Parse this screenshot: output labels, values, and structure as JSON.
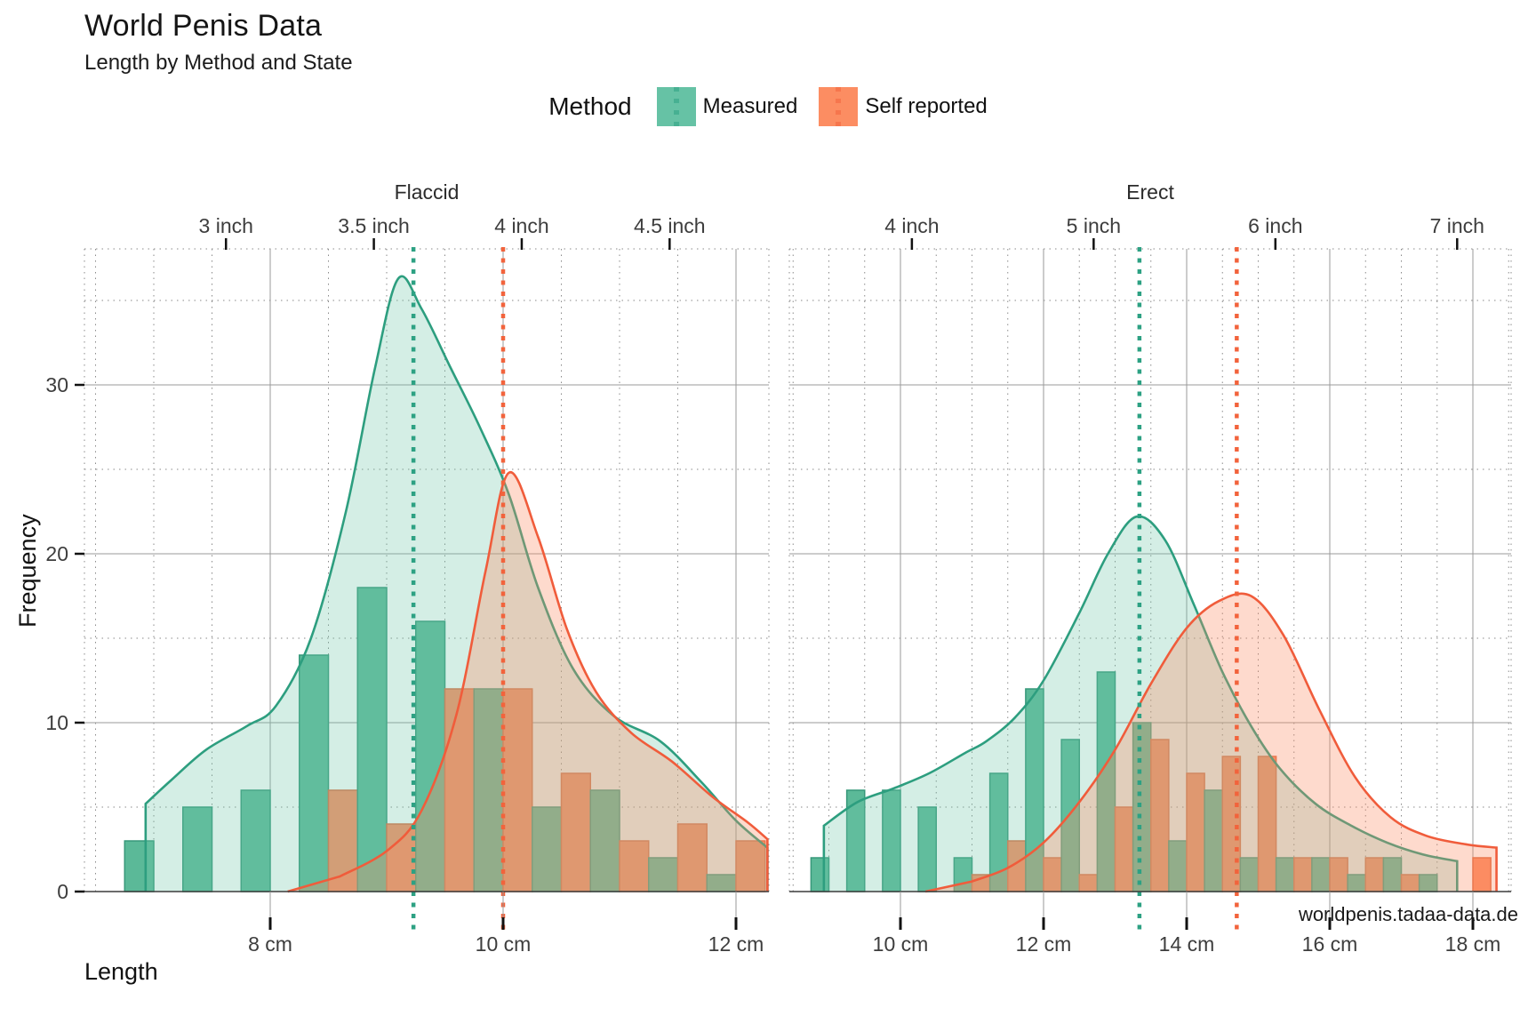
{
  "title": "World Penis Data",
  "subtitle": "Length by Method and State",
  "legend": {
    "title": "Method",
    "items": [
      {
        "label": "Measured",
        "color": "#66C2A5"
      },
      {
        "label": "Self reported",
        "color": "#FC8D62"
      }
    ]
  },
  "y_axis": {
    "label": "Frequency",
    "ticks": [
      0,
      10,
      20,
      30
    ],
    "minor_ticks": [
      5,
      15,
      25,
      35
    ],
    "max": 38
  },
  "x_axis": {
    "label": "Length"
  },
  "footer": "worldpenis.tadaa-data.de",
  "colors": {
    "measured_bar": "#5BB998",
    "measured_bar_stroke": "#37987A",
    "measured_line": "#2D9E7F",
    "measured_area": "rgba(111,199,168,0.30)",
    "measured_vline": "#2DA183",
    "self_bar": "#FC8D62",
    "self_bar_stroke": "#DF6E44",
    "self_line": "#F05C3B",
    "self_area": "rgba(252,141,98,0.32)",
    "self_vline": "#F2633C",
    "grid_major": "#9a9a9a",
    "grid_minor": "#8a8a8a",
    "axis_line": "#3c3c3c",
    "tick": "#111111"
  },
  "chart_data": {
    "type": "bar",
    "subtype": "dodged histogram with density curves and mean vlines",
    "series": [
      "Measured",
      "Self reported"
    ],
    "binwidth_cm": 0.5,
    "facets": [
      {
        "label": "Flaccid",
        "top_ticks": [
          {
            "cm": 7.62,
            "label": "3 inch"
          },
          {
            "cm": 8.89,
            "label": "3.5 inch"
          },
          {
            "cm": 10.16,
            "label": "4 inch"
          },
          {
            "cm": 11.43,
            "label": "4.5 inch"
          }
        ],
        "bottom_ticks": [
          {
            "cm": 8,
            "label": "8 cm"
          },
          {
            "cm": 10,
            "label": "10 cm"
          },
          {
            "cm": 12,
            "label": "12 cm"
          }
        ],
        "bins": [
          [
            7.0,
            3,
            0
          ],
          [
            7.5,
            5,
            0
          ],
          [
            8.0,
            6,
            0
          ],
          [
            8.5,
            14,
            6
          ],
          [
            9.0,
            18,
            4
          ],
          [
            9.5,
            16,
            12
          ],
          [
            10.0,
            12,
            12
          ],
          [
            10.5,
            5,
            7
          ],
          [
            11.0,
            6,
            3
          ],
          [
            11.5,
            2,
            4
          ],
          [
            12.0,
            1,
            3
          ]
        ],
        "means_cm": {
          "measured": 9.23,
          "self_reported": 10.0
        },
        "density": {
          "measured": [
            [
              6.93,
              0
            ],
            [
              6.93,
              5.2
            ],
            [
              7.15,
              6.6
            ],
            [
              7.45,
              8.4
            ],
            [
              7.8,
              9.8
            ],
            [
              8.05,
              11.0
            ],
            [
              8.35,
              15.0
            ],
            [
              8.65,
              22.5
            ],
            [
              8.9,
              31.0
            ],
            [
              9.1,
              36.3
            ],
            [
              9.3,
              34.5
            ],
            [
              9.55,
              31.0
            ],
            [
              9.8,
              27.5
            ],
            [
              10.05,
              23.5
            ],
            [
              10.3,
              18.0
            ],
            [
              10.6,
              13.2
            ],
            [
              10.95,
              10.4
            ],
            [
              11.35,
              8.9
            ],
            [
              11.7,
              6.5
            ],
            [
              12.0,
              4.2
            ],
            [
              12.27,
              2.6
            ],
            [
              12.27,
              0
            ]
          ],
          "self_reported": [
            [
              8.15,
              0
            ],
            [
              8.6,
              0.9
            ],
            [
              9.0,
              2.4
            ],
            [
              9.3,
              4.8
            ],
            [
              9.6,
              10.5
            ],
            [
              9.85,
              19.0
            ],
            [
              10.05,
              24.8
            ],
            [
              10.3,
              21.0
            ],
            [
              10.55,
              15.5
            ],
            [
              10.8,
              11.8
            ],
            [
              11.1,
              9.4
            ],
            [
              11.45,
              7.7
            ],
            [
              11.8,
              5.6
            ],
            [
              12.1,
              4.1
            ],
            [
              12.27,
              3.1
            ],
            [
              12.27,
              0
            ]
          ]
        }
      },
      {
        "label": "Erect",
        "top_ticks": [
          {
            "cm": 10.16,
            "label": "4 inch"
          },
          {
            "cm": 12.7,
            "label": "5 inch"
          },
          {
            "cm": 15.24,
            "label": "6 inch"
          },
          {
            "cm": 17.78,
            "label": "7 inch"
          }
        ],
        "bottom_ticks": [
          {
            "cm": 10,
            "label": "10 cm"
          },
          {
            "cm": 12,
            "label": "12 cm"
          },
          {
            "cm": 14,
            "label": "14 cm"
          },
          {
            "cm": 16,
            "label": "16 cm"
          },
          {
            "cm": 18,
            "label": "18 cm"
          }
        ],
        "bins": [
          [
            9.0,
            2,
            0
          ],
          [
            9.5,
            6,
            0
          ],
          [
            10.0,
            6,
            0
          ],
          [
            10.5,
            5,
            0
          ],
          [
            11.0,
            2,
            1
          ],
          [
            11.5,
            7,
            3
          ],
          [
            12.0,
            12,
            2
          ],
          [
            12.5,
            9,
            1
          ],
          [
            13.0,
            13,
            5
          ],
          [
            13.5,
            10,
            9
          ],
          [
            14.0,
            3,
            7
          ],
          [
            14.5,
            6,
            8
          ],
          [
            15.0,
            2,
            8
          ],
          [
            15.5,
            2,
            2
          ],
          [
            16.0,
            2,
            2
          ],
          [
            16.5,
            1,
            2
          ],
          [
            17.0,
            2,
            1
          ],
          [
            17.5,
            1,
            0
          ],
          [
            18.0,
            0,
            2
          ]
        ],
        "means_cm": {
          "measured": 13.34,
          "self_reported": 14.7
        },
        "density": {
          "measured": [
            [
              8.93,
              0
            ],
            [
              8.93,
              3.9
            ],
            [
              9.4,
              5.3
            ],
            [
              9.9,
              6.1
            ],
            [
              10.4,
              7.0
            ],
            [
              10.9,
              8.2
            ],
            [
              11.2,
              8.9
            ],
            [
              11.6,
              10.3
            ],
            [
              12.0,
              12.5
            ],
            [
              12.5,
              16.5
            ],
            [
              12.9,
              20.0
            ],
            [
              13.3,
              22.2
            ],
            [
              13.7,
              20.8
            ],
            [
              14.1,
              17.0
            ],
            [
              14.5,
              13.0
            ],
            [
              14.9,
              9.8
            ],
            [
              15.3,
              7.3
            ],
            [
              15.8,
              5.2
            ],
            [
              16.3,
              3.9
            ],
            [
              16.8,
              2.9
            ],
            [
              17.3,
              2.2
            ],
            [
              17.78,
              1.8
            ],
            [
              17.78,
              0
            ]
          ],
          "self_reported": [
            [
              10.35,
              0
            ],
            [
              11.0,
              0.6
            ],
            [
              11.5,
              1.4
            ],
            [
              12.0,
              2.9
            ],
            [
              12.5,
              5.3
            ],
            [
              13.0,
              8.4
            ],
            [
              13.5,
              12.3
            ],
            [
              14.0,
              15.6
            ],
            [
              14.45,
              17.2
            ],
            [
              14.9,
              17.5
            ],
            [
              15.35,
              15.2
            ],
            [
              15.85,
              10.8
            ],
            [
              16.35,
              6.8
            ],
            [
              16.85,
              4.4
            ],
            [
              17.35,
              3.3
            ],
            [
              17.9,
              2.8
            ],
            [
              18.33,
              2.6
            ],
            [
              18.33,
              0
            ]
          ]
        }
      }
    ]
  }
}
